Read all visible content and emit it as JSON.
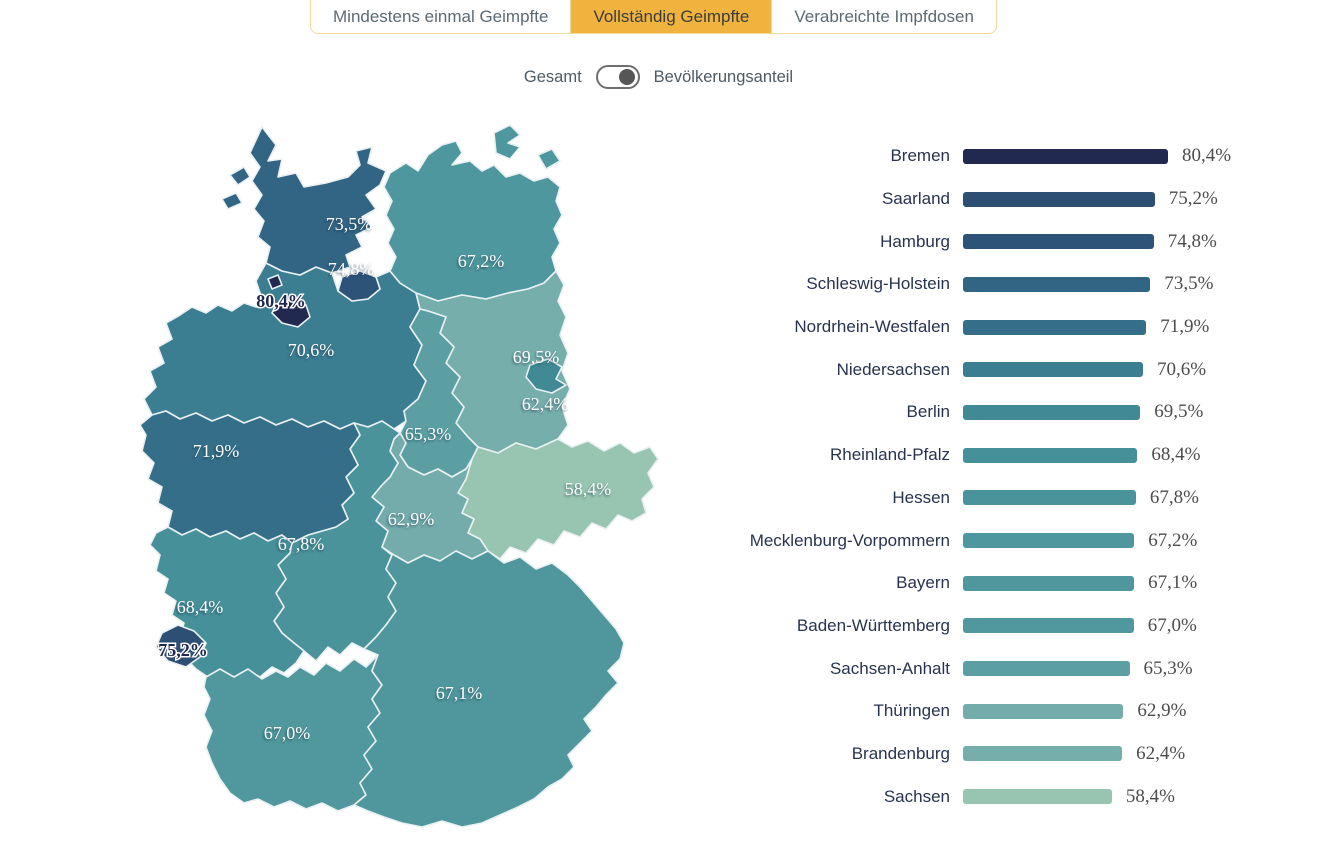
{
  "tabs": [
    {
      "label": "Mindestens einmal Geimpfte",
      "active": false
    },
    {
      "label": "Vollständig Geimpfte",
      "active": true
    },
    {
      "label": "Verabreichte Impfdosen",
      "active": false
    }
  ],
  "toggle": {
    "left_label": "Gesamt",
    "right_label": "Bevölkerungsanteil",
    "state": "right"
  },
  "colors": {
    "tab_active_bg": "#f0b43e",
    "tab_border": "#f3d8a0",
    "map_border": "#e9f0f2"
  },
  "chart_data": {
    "type": "bar",
    "orientation": "horizontal",
    "unit": "%",
    "xlim": [
      0,
      80.4
    ],
    "grid": false,
    "categories": [
      "Bremen",
      "Saarland",
      "Hamburg",
      "Schleswig-Holstein",
      "Nordrhein-Westfalen",
      "Niedersachsen",
      "Berlin",
      "Rheinland-Pfalz",
      "Hessen",
      "Mecklenburg-Vorpommern",
      "Bayern",
      "Baden-Württemberg",
      "Sachsen-Anhalt",
      "Thüringen",
      "Brandenburg",
      "Sachsen"
    ],
    "values": [
      80.4,
      75.2,
      74.8,
      73.5,
      71.9,
      70.6,
      69.5,
      68.4,
      67.8,
      67.2,
      67.1,
      67.0,
      65.3,
      62.9,
      62.4,
      58.4
    ],
    "display_values": [
      "80,4%",
      "75,2%",
      "74,8%",
      "73,5%",
      "71,9%",
      "70,6%",
      "69,5%",
      "68,4%",
      "67,8%",
      "67,2%",
      "67,1%",
      "67,0%",
      "65,3%",
      "62,9%",
      "62,4%",
      "58,4%"
    ],
    "colors": [
      "#212950",
      "#2d4f74",
      "#2e5379",
      "#326484",
      "#346e89",
      "#3b7d91",
      "#408995",
      "#46909a",
      "#4a939b",
      "#4e979e",
      "#4f979d",
      "#50989d",
      "#5b9fa3",
      "#73acab",
      "#76aeac",
      "#97c5b1"
    ]
  }
}
